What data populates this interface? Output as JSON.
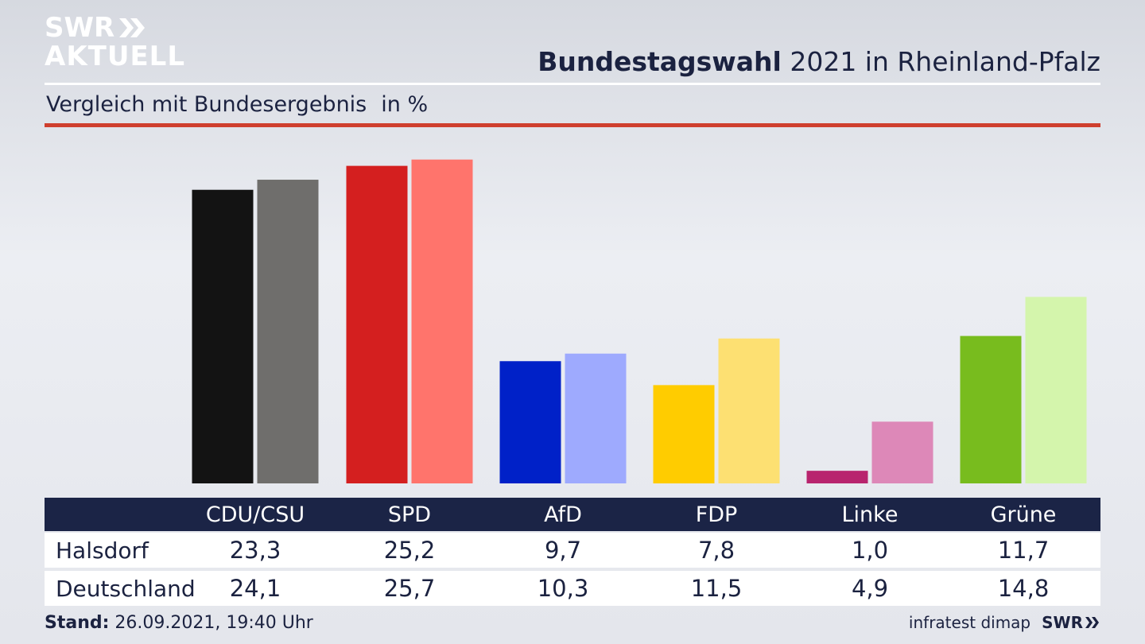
{
  "logo": {
    "line1": "SWR",
    "line2": "AKTUELL"
  },
  "header": {
    "title_bold": "Bundestagswahl",
    "title_rest": " 2021 in Rheinland-Pfalz",
    "subtitle": "Vergleich mit Bundesergebnis",
    "unit": "in %"
  },
  "footer": {
    "stand_label": "Stand:",
    "stand_value": " 26.09.2021, 19:40 Uhr",
    "source": "infratest dimap",
    "brand": "SWR"
  },
  "table": {
    "headers": [
      "CDU/CSU",
      "SPD",
      "AfD",
      "FDP",
      "Linke",
      "Grüne"
    ],
    "rows": [
      {
        "label": "Halsdorf",
        "values": [
          "23,3",
          "25,2",
          "9,7",
          "7,8",
          "1,0",
          "11,7"
        ]
      },
      {
        "label": "Deutschland",
        "values": [
          "24,1",
          "25,7",
          "10,3",
          "11,5",
          "4,9",
          "14,8"
        ]
      }
    ]
  },
  "chart_data": {
    "type": "bar",
    "categories": [
      "CDU/CSU",
      "SPD",
      "AfD",
      "FDP",
      "Linke",
      "Grüne"
    ],
    "series": [
      {
        "name": "Halsdorf",
        "values": [
          23.3,
          25.2,
          9.7,
          7.8,
          1.0,
          11.7
        ],
        "colors": [
          "#131313",
          "#d41f1f",
          "#0021c8",
          "#ffcc00",
          "#b8246e",
          "#78bc1e"
        ]
      },
      {
        "name": "Deutschland",
        "values": [
          24.1,
          25.7,
          10.3,
          11.5,
          4.9,
          14.8
        ],
        "colors": [
          "#6f6e6c",
          "#ff746c",
          "#9eaafe",
          "#fde072",
          "#dd88b8",
          "#d4f5ac"
        ]
      }
    ],
    "title": "Bundestagswahl 2021 in Rheinland-Pfalz",
    "subtitle": "Vergleich mit Bundesergebnis",
    "ylabel": "in %",
    "ylim": [
      0,
      26.5
    ],
    "grid": false
  }
}
